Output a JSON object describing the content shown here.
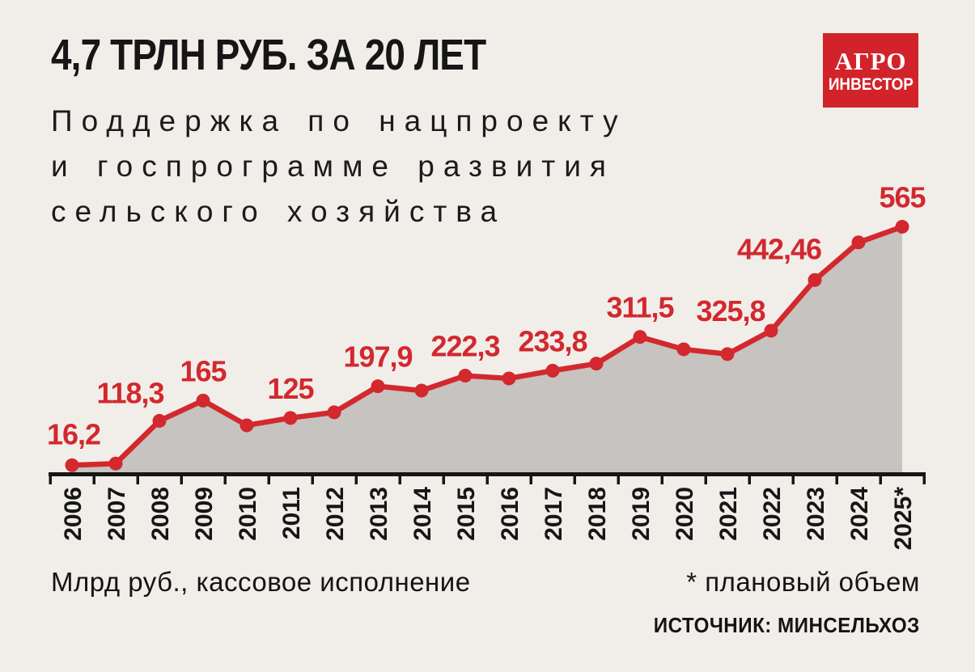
{
  "header": {
    "title": "4,7 ТРЛН РУБ. ЗА 20 ЛЕТ",
    "subtitle_lines": [
      "Поддержка по нацпроекту",
      "и госпрограмме развития",
      "сельского хозяйства"
    ],
    "logo": {
      "line1": "АГРО",
      "line2": "ИНВЕСТОР"
    }
  },
  "footer": {
    "unit_note": "Млрд руб., кассовое исполнение",
    "plan_note": "* плановый объем",
    "source": "ИСТОЧНИК: МИНСЕЛЬХОЗ"
  },
  "colors": {
    "background": "#f1eeea",
    "accent": "#d3282e",
    "logo_red": "#d2232a",
    "area_fill": "#c6c3c0",
    "ink": "#161616"
  },
  "chart_data": {
    "type": "area",
    "title": "4,7 ТРЛН РУБ. ЗА 20 ЛЕТ",
    "subtitle": "Поддержка по нацпроекту и госпрограмме развития сельского хозяйства",
    "ylabel": "Млрд руб., кассовое исполнение",
    "xlabel": "",
    "categories": [
      "2006",
      "2007",
      "2008",
      "2009",
      "2010",
      "2011",
      "2012",
      "2013",
      "2014",
      "2015",
      "2016",
      "2017",
      "2018",
      "2019",
      "2020",
      "2021",
      "2022",
      "2023",
      "2024",
      "2025*"
    ],
    "series": [
      {
        "name": "Млрд руб., кассовое исполнение",
        "values": [
          16.2,
          20,
          118.3,
          165,
          108,
          125,
          138,
          197.9,
          188,
          222.3,
          216,
          233.8,
          250,
          311.5,
          283,
          272,
          325.8,
          442.46,
          529,
          565
        ]
      }
    ],
    "point_labels": [
      "16,2",
      null,
      "118,3",
      "165",
      null,
      "125",
      null,
      "197,9",
      null,
      "222,3",
      null,
      "233,8",
      null,
      "311,5",
      null,
      null,
      "325,8",
      "442,46",
      null,
      "565"
    ],
    "estimated_indices": [
      1,
      4,
      6,
      8,
      10,
      12,
      14,
      15,
      18
    ],
    "footnote": "* плановый объем",
    "source": "ИСТОЧНИК: МИНСЕЛЬХОЗ",
    "ylim": [
      0,
      600
    ],
    "grid": false,
    "legend": "none"
  }
}
